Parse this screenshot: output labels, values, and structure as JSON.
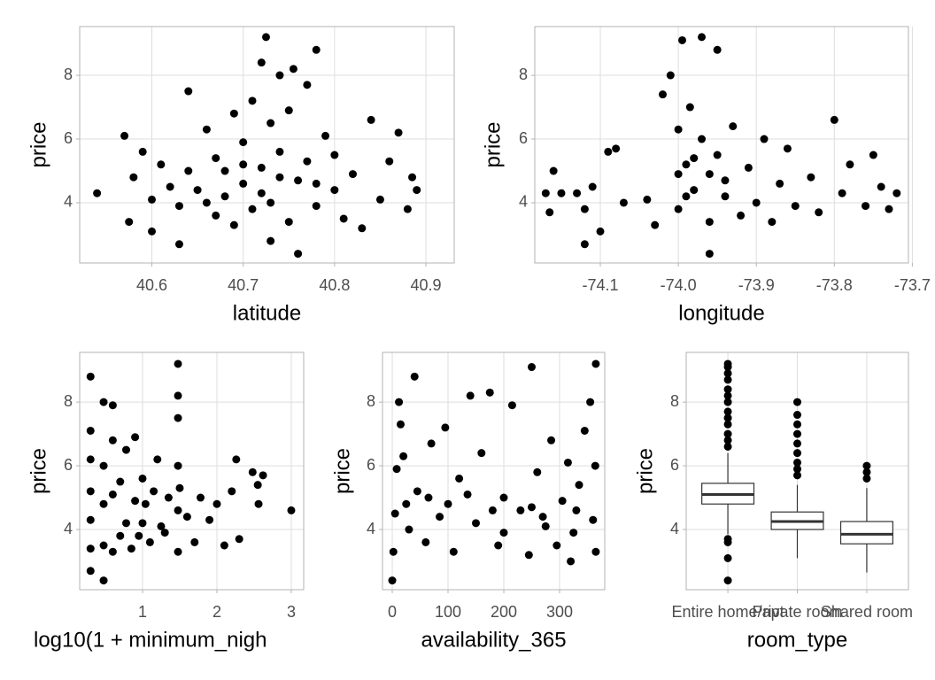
{
  "chart_data": [
    {
      "type": "scatter",
      "x_label": "latitude",
      "y_label": "price",
      "color": "#000000",
      "grid": true,
      "xlim": [
        40.521,
        40.931
      ],
      "ylim": [
        2.11,
        9.53
      ],
      "xticks": [
        40.6,
        40.7,
        40.8,
        40.9
      ],
      "yticks": [
        4,
        6,
        8
      ],
      "x": [
        40.54,
        40.57,
        40.575,
        40.58,
        40.59,
        40.6,
        40.6,
        40.61,
        40.62,
        40.63,
        40.63,
        40.64,
        40.64,
        40.65,
        40.66,
        40.67,
        40.67,
        40.68,
        40.69,
        40.69,
        40.7,
        40.7,
        40.71,
        40.71,
        40.72,
        40.72,
        40.725,
        40.73,
        40.73,
        40.73,
        40.74,
        40.74,
        40.75,
        40.75,
        40.755,
        40.76,
        40.76,
        40.77,
        40.77,
        40.78,
        40.78,
        40.79,
        40.8,
        40.8,
        40.81,
        40.82,
        40.83,
        40.84,
        40.85,
        40.86,
        40.87,
        40.88,
        40.885,
        40.89,
        40.74,
        40.68,
        40.72,
        40.78,
        40.66,
        40.7
      ],
      "y": [
        4.3,
        6.1,
        3.4,
        4.8,
        5.6,
        3.1,
        4.1,
        5.2,
        4.5,
        2.7,
        3.9,
        7.5,
        5.0,
        4.4,
        6.3,
        3.6,
        5.4,
        4.2,
        6.8,
        3.3,
        5.9,
        4.6,
        7.2,
        3.8,
        5.1,
        8.4,
        9.2,
        6.5,
        4.0,
        2.8,
        5.6,
        8.0,
        3.4,
        6.9,
        8.2,
        4.7,
        2.4,
        5.3,
        7.7,
        8.8,
        3.9,
        6.1,
        4.4,
        5.5,
        3.5,
        4.9,
        3.2,
        6.6,
        4.1,
        5.3,
        6.2,
        3.8,
        4.8,
        4.4,
        4.8,
        5.0,
        4.3,
        4.6,
        4.0,
        5.2
      ]
    },
    {
      "type": "scatter",
      "x_label": "longitude",
      "y_label": "price",
      "color": "#000000",
      "grid": true,
      "xlim": [
        -74.184,
        -73.705
      ],
      "ylim": [
        2.11,
        9.53
      ],
      "xticks": [
        -74.1,
        {
          "value": -74,
          "label": "-74.0"
        },
        -73.9,
        -73.8,
        -73.7
      ],
      "yticks": [
        4,
        6,
        8
      ],
      "x": [
        -74.17,
        -74.165,
        -74.16,
        -74.15,
        -74.13,
        -74.12,
        -74.12,
        -74.11,
        -74.1,
        -74.09,
        -74.08,
        -74.07,
        -74.04,
        -74.03,
        -74.02,
        -74.01,
        -74.0,
        -74.0,
        -73.995,
        -73.99,
        -73.985,
        -73.98,
        -73.97,
        -73.97,
        -73.96,
        -73.96,
        -73.95,
        -73.95,
        -73.94,
        -73.93,
        -73.92,
        -73.91,
        -73.9,
        -73.89,
        -73.88,
        -73.87,
        -73.86,
        -73.85,
        -73.83,
        -73.82,
        -73.8,
        -73.79,
        -73.78,
        -73.76,
        -73.75,
        -73.74,
        -73.73,
        -73.72,
        -74.0,
        -73.98,
        -73.94,
        -73.99,
        -73.96
      ],
      "y": [
        4.3,
        3.7,
        5.0,
        4.3,
        4.3,
        2.7,
        3.8,
        4.5,
        3.1,
        5.6,
        5.7,
        4.0,
        4.1,
        3.3,
        7.4,
        8.0,
        6.3,
        3.8,
        9.1,
        5.2,
        7.0,
        4.4,
        9.2,
        6.0,
        3.4,
        2.4,
        5.5,
        8.8,
        4.2,
        6.4,
        3.6,
        5.1,
        4.0,
        6.0,
        3.4,
        4.6,
        5.7,
        3.9,
        4.8,
        3.7,
        6.6,
        4.3,
        5.2,
        3.9,
        5.5,
        4.5,
        3.8,
        4.3,
        4.9,
        5.4,
        4.7,
        4.2,
        4.9
      ]
    },
    {
      "type": "scatter",
      "x_label": "log10(1 + minimum_nigh",
      "y_label": "price",
      "color": "#000000",
      "grid": true,
      "xlim": [
        0.155,
        3.167
      ],
      "ylim": [
        2.11,
        9.56
      ],
      "xticks": [
        1,
        2,
        3
      ],
      "yticks": [
        4,
        6,
        8
      ],
      "x": [
        0.301,
        0.301,
        0.301,
        0.301,
        0.301,
        0.301,
        0.301,
        0.477,
        0.477,
        0.477,
        0.477,
        0.477,
        0.6,
        0.6,
        0.6,
        0.6,
        0.7,
        0.7,
        0.78,
        0.78,
        0.85,
        0.9,
        0.9,
        0.95,
        1.0,
        1.0,
        1.04,
        1.1,
        1.15,
        1.2,
        1.25,
        1.3,
        1.35,
        1.477,
        1.477,
        1.477,
        1.477,
        1.477,
        1.477,
        1.5,
        1.6,
        1.7,
        1.78,
        1.9,
        2.0,
        2.1,
        2.2,
        2.26,
        2.3,
        2.48,
        2.55,
        2.56,
        2.62,
        3.0
      ],
      "y": [
        2.7,
        3.4,
        4.3,
        5.2,
        6.2,
        7.1,
        8.8,
        2.4,
        3.5,
        4.8,
        6.0,
        8.0,
        3.3,
        5.1,
        6.8,
        7.9,
        3.8,
        5.5,
        4.2,
        6.5,
        3.4,
        4.9,
        6.9,
        3.8,
        5.6,
        4.2,
        4.8,
        3.6,
        5.2,
        6.2,
        4.1,
        3.9,
        5.0,
        3.3,
        4.6,
        6.0,
        7.5,
        8.2,
        9.2,
        5.3,
        4.4,
        3.6,
        5.0,
        4.3,
        4.8,
        3.5,
        5.2,
        6.2,
        3.7,
        5.8,
        5.4,
        4.8,
        5.7,
        4.6
      ]
    },
    {
      "type": "scatter",
      "x_label": "availability_365",
      "y_label": "price",
      "color": "#000000",
      "grid": true,
      "xlim": [
        -17.5,
        381
      ],
      "ylim": [
        2.11,
        9.56
      ],
      "xticks": [
        0,
        100,
        200,
        300
      ],
      "yticks": [
        4,
        6,
        8
      ],
      "x": [
        0,
        2,
        5,
        8,
        12,
        20,
        30,
        40,
        45,
        60,
        70,
        85,
        95,
        110,
        120,
        140,
        150,
        160,
        175,
        190,
        200,
        215,
        230,
        245,
        250,
        260,
        275,
        285,
        295,
        305,
        315,
        325,
        335,
        345,
        355,
        360,
        365,
        365,
        364,
        100,
        180,
        250,
        330,
        25,
        65,
        135,
        270,
        200,
        15,
        320
      ],
      "y": [
        2.4,
        3.3,
        4.5,
        5.9,
        8.0,
        6.3,
        4.0,
        8.8,
        5.2,
        3.6,
        6.7,
        4.4,
        7.2,
        3.3,
        5.6,
        8.2,
        4.2,
        6.4,
        8.3,
        3.5,
        5.0,
        7.9,
        4.6,
        3.2,
        9.1,
        5.8,
        4.1,
        6.8,
        3.5,
        4.9,
        6.1,
        3.9,
        5.4,
        7.1,
        8.0,
        4.3,
        9.2,
        3.3,
        6.0,
        4.8,
        4.6,
        4.7,
        4.6,
        4.8,
        5.0,
        5.1,
        4.4,
        3.9,
        7.3,
        3.0
      ]
    },
    {
      "type": "box",
      "x_label": "room_type",
      "y_label": "price",
      "color": "#333333",
      "grid": true,
      "ylim": [
        2.11,
        9.56
      ],
      "yticks": [
        4,
        6,
        8
      ],
      "categories": [
        "Entire home/apt",
        "Private room",
        "Shared room"
      ],
      "boxes": [
        {
          "whisker_low": 3.85,
          "q1": 4.8,
          "median": 5.1,
          "q3": 5.45,
          "whisker_high": 6.4,
          "outliers": [
            9.2,
            9.1,
            8.9,
            8.7,
            8.4,
            8.2,
            8.0,
            7.7,
            7.5,
            7.3,
            7.0,
            6.8,
            6.6,
            3.7,
            3.6,
            3.1,
            2.4
          ]
        },
        {
          "whisker_low": 3.1,
          "q1": 4.0,
          "median": 4.25,
          "q3": 4.55,
          "whisker_high": 5.4,
          "outliers": [
            8.0,
            7.6,
            7.3,
            7.0,
            6.7,
            6.4,
            6.1,
            5.9,
            5.7
          ]
        },
        {
          "whisker_low": 2.65,
          "q1": 3.55,
          "median": 3.85,
          "q3": 4.25,
          "whisker_high": 5.3,
          "outliers": [
            5.6,
            5.8,
            6.0
          ]
        }
      ]
    }
  ]
}
